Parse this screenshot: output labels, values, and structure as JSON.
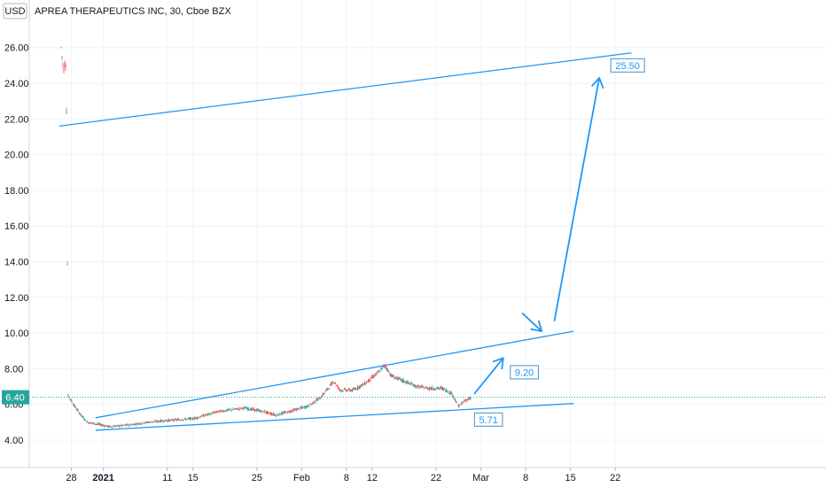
{
  "header": {
    "currency_badge": "USD",
    "title": "APREA THERAPEUTICS INC, 30, Cboe BZX"
  },
  "price_tag": "6.40",
  "colors": {
    "accent": "#2196f3",
    "up": "#26a69a",
    "down": "#ef5350",
    "price_tag_bg": "#26a69a",
    "grid": "#f0f3fa"
  },
  "chart_data": {
    "type": "candlestick",
    "title": "APREA THERAPEUTICS INC, 30, Cboe BZX",
    "ylim": [
      2.6,
      27.0
    ],
    "y_ticks": [
      "4.00",
      "6.00",
      "8.00",
      "10.00",
      "12.00",
      "14.00",
      "16.00",
      "18.00",
      "20.00",
      "22.00",
      "24.00",
      "26.00"
    ],
    "x_ticks": [
      {
        "label": "28",
        "day": -4,
        "bold": false
      },
      {
        "label": "2021",
        "day": 1,
        "bold": true
      },
      {
        "label": "11",
        "day": 11,
        "bold": false
      },
      {
        "label": "15",
        "day": 15,
        "bold": false
      },
      {
        "label": "25",
        "day": 25,
        "bold": false
      },
      {
        "label": "Feb",
        "day": 32,
        "bold": false
      },
      {
        "label": "8",
        "day": 39,
        "bold": false
      },
      {
        "label": "12",
        "day": 43,
        "bold": false
      },
      {
        "label": "22",
        "day": 53,
        "bold": false
      },
      {
        "label": "Mar",
        "day": 60,
        "bold": false
      },
      {
        "label": "8",
        "day": 67,
        "bold": false
      },
      {
        "label": "15",
        "day": 74,
        "bold": false
      },
      {
        "label": "22",
        "day": 81,
        "bold": false
      }
    ],
    "price_series": [
      {
        "day": -5.6,
        "price": 26.0
      },
      {
        "day": -5.4,
        "price": 25.3
      },
      {
        "day": -5.2,
        "price": 24.7
      },
      {
        "day": -5.0,
        "price": 25.2
      },
      {
        "day": -4.8,
        "price": 24.9
      },
      {
        "day": -4.5,
        "price": 6.5
      },
      {
        "day": -3.5,
        "price": 5.9
      },
      {
        "day": -2.5,
        "price": 5.4
      },
      {
        "day": -1.5,
        "price": 5.0
      },
      {
        "day": 0.0,
        "price": 4.9
      },
      {
        "day": 2.0,
        "price": 4.75
      },
      {
        "day": 5.0,
        "price": 4.85
      },
      {
        "day": 8.0,
        "price": 5.0
      },
      {
        "day": 11.0,
        "price": 5.1
      },
      {
        "day": 15.0,
        "price": 5.2
      },
      {
        "day": 19.0,
        "price": 5.6
      },
      {
        "day": 23.0,
        "price": 5.8
      },
      {
        "day": 26.0,
        "price": 5.6
      },
      {
        "day": 28.0,
        "price": 5.4
      },
      {
        "day": 30.0,
        "price": 5.6
      },
      {
        "day": 33.0,
        "price": 5.9
      },
      {
        "day": 35.0,
        "price": 6.4
      },
      {
        "day": 37.0,
        "price": 7.3
      },
      {
        "day": 38.0,
        "price": 6.8
      },
      {
        "day": 40.0,
        "price": 6.8
      },
      {
        "day": 42.0,
        "price": 7.2
      },
      {
        "day": 44.0,
        "price": 7.8
      },
      {
        "day": 45.0,
        "price": 8.2
      },
      {
        "day": 46.0,
        "price": 7.6
      },
      {
        "day": 48.0,
        "price": 7.3
      },
      {
        "day": 50.0,
        "price": 7.0
      },
      {
        "day": 52.0,
        "price": 6.9
      },
      {
        "day": 54.0,
        "price": 6.9
      },
      {
        "day": 55.5,
        "price": 6.6
      },
      {
        "day": 56.5,
        "price": 5.9
      },
      {
        "day": 57.5,
        "price": 6.2
      },
      {
        "day": 58.5,
        "price": 6.4
      }
    ],
    "last_price": 6.4,
    "trendlines": [
      {
        "name": "top-channel",
        "from": {
          "day": -5.9,
          "price": 21.6
        },
        "to": {
          "day": 83.5,
          "price": 25.7
        }
      },
      {
        "name": "upper-channel",
        "from": {
          "day": -0.2,
          "price": 5.25
        },
        "to": {
          "day": 74.5,
          "price": 10.1
        }
      },
      {
        "name": "lower-channel",
        "from": {
          "day": -0.2,
          "price": 4.55
        },
        "to": {
          "day": 74.5,
          "price": 6.05
        }
      }
    ],
    "arrows": [
      {
        "from": {
          "day": 59.0,
          "price": 6.6
        },
        "to": {
          "day": 63.5,
          "price": 8.6
        }
      },
      {
        "from": {
          "day": 66.5,
          "price": 11.1
        },
        "to": {
          "day": 69.5,
          "price": 10.1
        }
      },
      {
        "from": {
          "day": 71.5,
          "price": 10.7
        },
        "to": {
          "day": 78.5,
          "price": 24.3
        }
      }
    ],
    "annotations": [
      {
        "label": "25.50",
        "day": 80.3,
        "price": 25.0
      },
      {
        "label": "9.20",
        "day": 64.6,
        "price": 7.8
      },
      {
        "label": "5.71",
        "day": 59.0,
        "price": 5.15
      }
    ],
    "grid": true
  }
}
